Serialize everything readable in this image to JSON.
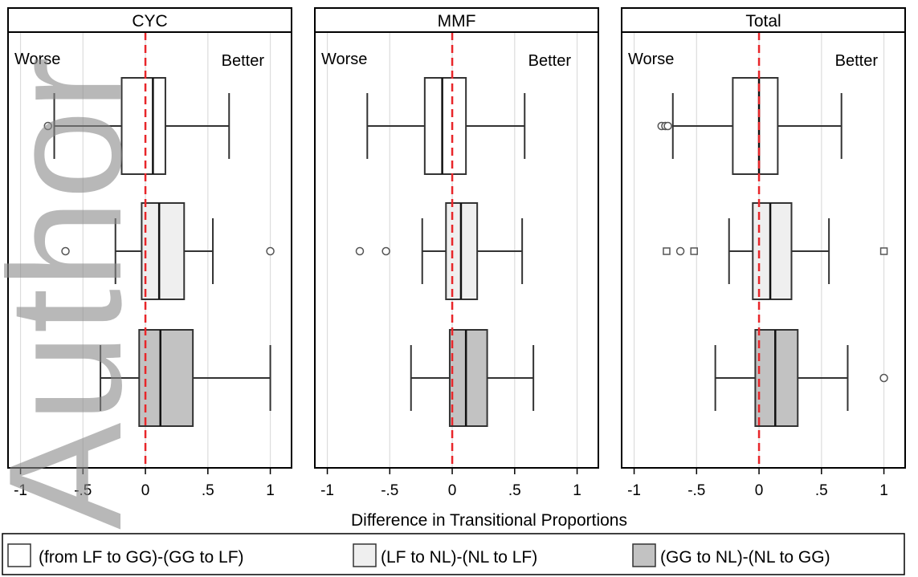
{
  "chart_data": {
    "type": "box",
    "xlabel": "Difference in Transitional Proportions",
    "xlim": [
      -1.1,
      1.17
    ],
    "x_ticks": [
      {
        "value": -1,
        "label": "-1"
      },
      {
        "value": -0.5,
        "label": "-.5"
      },
      {
        "value": 0,
        "label": "0"
      },
      {
        "value": 0.5,
        "label": ".5"
      },
      {
        "value": 1,
        "label": "1"
      }
    ],
    "reference_line": {
      "x": 0,
      "color": "#e8262a",
      "style": "dashed"
    },
    "grid": true,
    "region_labels": {
      "left": "Worse",
      "right": "Better"
    },
    "series": [
      {
        "name": "(from LF to GG)-(GG to LF)",
        "fill": "#ffffff"
      },
      {
        "name": "(LF to NL)-(NL to LF)",
        "fill": "#efefef"
      },
      {
        "name": "(GG to NL)-(NL to GG)",
        "fill": "#c2c2c2"
      }
    ],
    "panels": [
      {
        "title": "CYC",
        "boxes": [
          {
            "series": 0,
            "whisker_low": -0.73,
            "q1": -0.19,
            "median": 0.06,
            "q3": 0.16,
            "whisker_high": 0.67,
            "outliers": [
              {
                "x": -0.78,
                "shape": "circle"
              }
            ]
          },
          {
            "series": 1,
            "whisker_low": -0.24,
            "q1": -0.03,
            "median": 0.11,
            "q3": 0.31,
            "whisker_high": 0.54,
            "outliers": [
              {
                "x": -0.64,
                "shape": "circle"
              },
              {
                "x": 1.0,
                "shape": "circle"
              }
            ]
          },
          {
            "series": 2,
            "whisker_low": -0.36,
            "q1": -0.05,
            "median": 0.12,
            "q3": 0.38,
            "whisker_high": 1.0,
            "outliers": []
          }
        ]
      },
      {
        "title": "MMF",
        "boxes": [
          {
            "series": 0,
            "whisker_low": -0.68,
            "q1": -0.22,
            "median": -0.08,
            "q3": 0.11,
            "whisker_high": 0.58,
            "outliers": []
          },
          {
            "series": 1,
            "whisker_low": -0.24,
            "q1": -0.05,
            "median": 0.07,
            "q3": 0.2,
            "whisker_high": 0.56,
            "outliers": [
              {
                "x": -0.74,
                "shape": "circle"
              },
              {
                "x": -0.53,
                "shape": "circle"
              }
            ]
          },
          {
            "series": 2,
            "whisker_low": -0.33,
            "q1": -0.02,
            "median": 0.11,
            "q3": 0.28,
            "whisker_high": 0.65,
            "outliers": []
          }
        ]
      },
      {
        "title": "Total",
        "boxes": [
          {
            "series": 0,
            "whisker_low": -0.69,
            "q1": -0.21,
            "median": 0.0,
            "q3": 0.15,
            "whisker_high": 0.66,
            "outliers": [
              {
                "x": -0.78,
                "shape": "circle"
              },
              {
                "x": -0.75,
                "shape": "circle"
              },
              {
                "x": -0.73,
                "shape": "circle"
              }
            ]
          },
          {
            "series": 1,
            "whisker_low": -0.24,
            "q1": -0.05,
            "median": 0.09,
            "q3": 0.26,
            "whisker_high": 0.56,
            "outliers": [
              {
                "x": -0.74,
                "shape": "square"
              },
              {
                "x": -0.63,
                "shape": "circle"
              },
              {
                "x": -0.52,
                "shape": "square"
              },
              {
                "x": 1.0,
                "shape": "square"
              }
            ]
          },
          {
            "series": 2,
            "whisker_low": -0.35,
            "q1": -0.03,
            "median": 0.13,
            "q3": 0.31,
            "whisker_high": 0.71,
            "outliers": [
              {
                "x": 1.0,
                "shape": "circle"
              }
            ]
          }
        ]
      }
    ],
    "legend": {
      "position": "bottom"
    }
  },
  "watermark": {
    "text": "Author",
    "color": "#8a8a8a"
  }
}
